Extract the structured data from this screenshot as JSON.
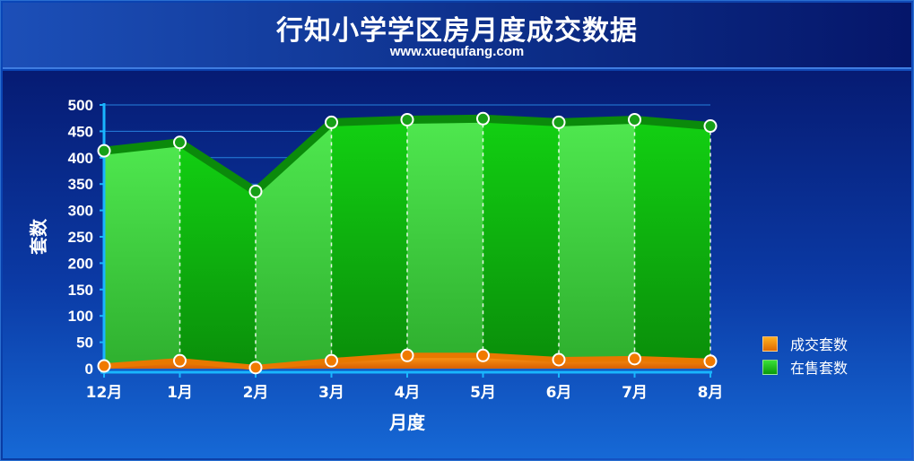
{
  "header": {
    "title": "行知小学学区房月度成交数据",
    "subtitle": "www.xuequfang.com"
  },
  "chart_data": {
    "type": "area",
    "title": "行知小学学区房月度成交数据",
    "subtitle": "www.xuequfang.com",
    "xlabel": "月度",
    "ylabel": "套数",
    "categories": [
      "12月",
      "1月",
      "2月",
      "3月",
      "4月",
      "5月",
      "6月",
      "7月",
      "8月"
    ],
    "ylim": [
      0,
      500
    ],
    "yticks": [
      0,
      50,
      100,
      150,
      200,
      250,
      300,
      350,
      400,
      450,
      500
    ],
    "grid": true,
    "legend_position": "right",
    "series": [
      {
        "name": "成交套数",
        "color": "#f08a00",
        "values": [
          5,
          15,
          2,
          15,
          25,
          25,
          17,
          19,
          14
        ]
      },
      {
        "name": "在售套数",
        "color": "#12b812",
        "values": [
          413,
          429,
          336,
          467,
          472,
          474,
          467,
          472,
          460
        ]
      }
    ]
  }
}
